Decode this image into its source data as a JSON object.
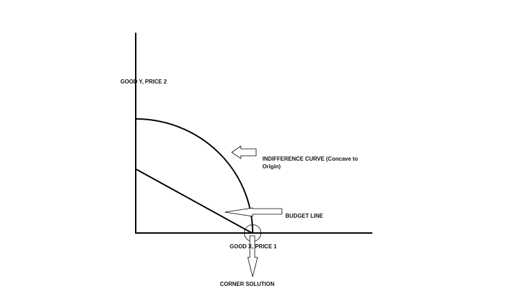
{
  "labels": {
    "y_axis": "GOOD Y, PRICE 2",
    "x_axis": "GOOD X, PRICE 1",
    "indifference_curve_line1": "INDIFFERENCE CURVE (Concave to",
    "indifference_curve_line2": "Origin)",
    "budget_line": "BUDGET LINE",
    "corner_solution": "CORNER SOLUTION"
  }
}
